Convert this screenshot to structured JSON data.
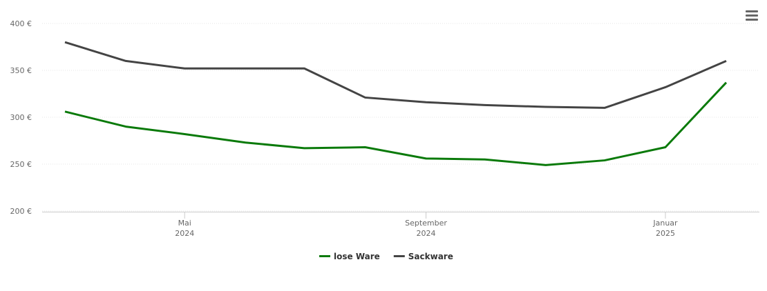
{
  "chart_data": {
    "type": "line",
    "x": [
      "2024-03",
      "2024-04",
      "2024-05",
      "2024-06",
      "2024-07",
      "2024-08",
      "2024-09",
      "2024-10",
      "2024-11",
      "2024-12",
      "2025-01",
      "2025-02"
    ],
    "series": [
      {
        "name": "lose Ware",
        "color": "#0a7a0a",
        "values": [
          306,
          290,
          282,
          273,
          267,
          268,
          256,
          255,
          249,
          254,
          268,
          337
        ]
      },
      {
        "name": "Sackware",
        "color": "#444444",
        "values": [
          380,
          360,
          352,
          352,
          352,
          321,
          316,
          313,
          311,
          310,
          332,
          360
        ]
      }
    ],
    "xlim": [
      "2024-03",
      "2025-02"
    ],
    "xticks": [
      {
        "value": "2024-05",
        "label": "Mai 2024"
      },
      {
        "value": "2024-09",
        "label": "September 2024"
      },
      {
        "value": "2025-01",
        "label": "Januar 2025"
      }
    ],
    "ylim": [
      200,
      400
    ],
    "yticks": [
      {
        "value": 200,
        "label": "200 €"
      },
      {
        "value": 250,
        "label": "250 €"
      },
      {
        "value": 300,
        "label": "300 €"
      },
      {
        "value": 350,
        "label": "350 €"
      },
      {
        "value": 400,
        "label": "400 €"
      }
    ],
    "grid": true,
    "legend": "bottom"
  }
}
